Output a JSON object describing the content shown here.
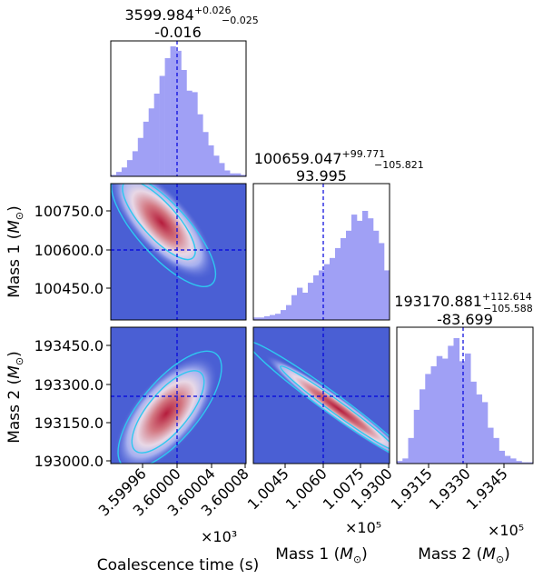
{
  "chart_data": {
    "type": "corner",
    "parameters": [
      "Coalescence time (s)",
      "Mass 1 (M⊙)",
      "Mass 2 (M⊙)"
    ],
    "marginals": [
      {
        "param": "Coalescence time",
        "title_main": "3599.984",
        "title_sup": "+0.026",
        "title_sub": "−0.025",
        "title_line2": "-0.016",
        "truth": 3600.0,
        "xlim": [
          3599.934,
          3600.1
        ],
        "hist": [
          1,
          3,
          6,
          11,
          17,
          26,
          37,
          46,
          56,
          68,
          80,
          88,
          85,
          72,
          58,
          57,
          42,
          30,
          21,
          14,
          9,
          4,
          2,
          2,
          1
        ]
      },
      {
        "param": "Mass 1",
        "title_main": "100659.047",
        "title_sup": "+99.771",
        "title_sub": "−105.821",
        "title_line2": "93.995",
        "truth": 100565,
        "xlim": [
          100330,
          100880
        ],
        "hist": [
          2,
          2,
          3,
          4,
          5,
          8,
          12,
          20,
          26,
          22,
          30,
          36,
          40,
          45,
          50,
          58,
          66,
          72,
          85,
          80,
          88,
          82,
          72,
          62,
          40
        ]
      },
      {
        "param": "Mass 2",
        "title_main": "193170.881",
        "title_sup": "+112.614",
        "title_sub": "−105.588",
        "title_line2": "-83.699",
        "truth": 193255,
        "xlim": [
          192980,
          193520
        ],
        "hist": [
          2,
          4,
          20,
          42,
          58,
          70,
          76,
          84,
          82,
          92,
          98,
          80,
          86,
          64,
          54,
          48,
          28,
          20,
          10,
          6,
          4,
          2,
          1,
          1
        ]
      }
    ],
    "pairs": [
      {
        "x": "Coalescence time",
        "y": "Mass 1",
        "correlation": "negative",
        "truth": [
          3600.0,
          100565
        ]
      },
      {
        "x": "Coalescence time",
        "y": "Mass 2",
        "correlation": "positive",
        "truth": [
          3600.0,
          193255
        ]
      },
      {
        "x": "Mass 1",
        "y": "Mass 2",
        "correlation": "negative",
        "truth": [
          100565,
          193255
        ]
      }
    ],
    "axes": {
      "x_ticks": [
        [
          "3.59996",
          "3.60000",
          "3.60004",
          "3.60008"
        ],
        [
          "1.0045",
          "1.0060",
          "1.0075",
          "1.9300"
        ],
        [
          "1.9315",
          "1.9330",
          "1.9345"
        ]
      ],
      "x_multipliers": [
        "×10³",
        "×10⁵",
        "×10⁵"
      ],
      "y_ticks": [
        [
          "100750.0",
          "100600.0",
          "100450.0"
        ],
        [
          "193450.0",
          "193300.0",
          "193150.0",
          "193000.0"
        ]
      ],
      "xlabels": [
        "Coalescence time (s)",
        "Mass 1 (",
        "Mass 2 ("
      ],
      "ylabels": [
        "Mass 1 (",
        "Mass 2 ("
      ],
      "label_unit_symbol": "M",
      "label_unit_sub": "⊙"
    },
    "colors": {
      "hist_fill": "#a0a0f5",
      "truth_line": "#0000dd",
      "density_background": "#4a5fd4",
      "density_peak": "#bb1d3a",
      "contour": "#2ec8f0"
    }
  }
}
